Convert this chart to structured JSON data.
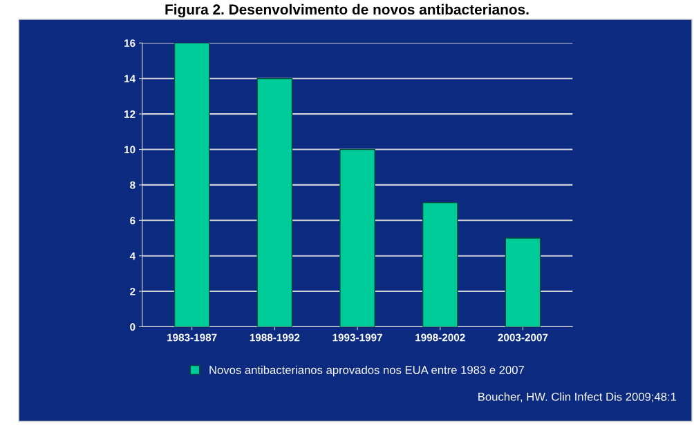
{
  "chart_data": {
    "type": "bar",
    "title": "Figura 2. Desenvolvimento de novos antibacterianos.",
    "categories": [
      "1983-1987",
      "1988-1992",
      "1993-1997",
      "1998-2002",
      "2003-2007"
    ],
    "series": [
      {
        "name": "Novos antibacterianos aprovados nos EUA entre 1983 e 2007",
        "color": "#00cc99",
        "values": [
          16,
          14,
          10,
          7,
          5
        ]
      }
    ],
    "ylim": [
      0,
      16
    ],
    "yticks": [
      0,
      2,
      4,
      6,
      8,
      10,
      12,
      14,
      16
    ],
    "grid": "y",
    "legend": "bottom",
    "annotations": [
      "Boucher, HW. Clin Infect Dis 2009;48:1"
    ]
  }
}
